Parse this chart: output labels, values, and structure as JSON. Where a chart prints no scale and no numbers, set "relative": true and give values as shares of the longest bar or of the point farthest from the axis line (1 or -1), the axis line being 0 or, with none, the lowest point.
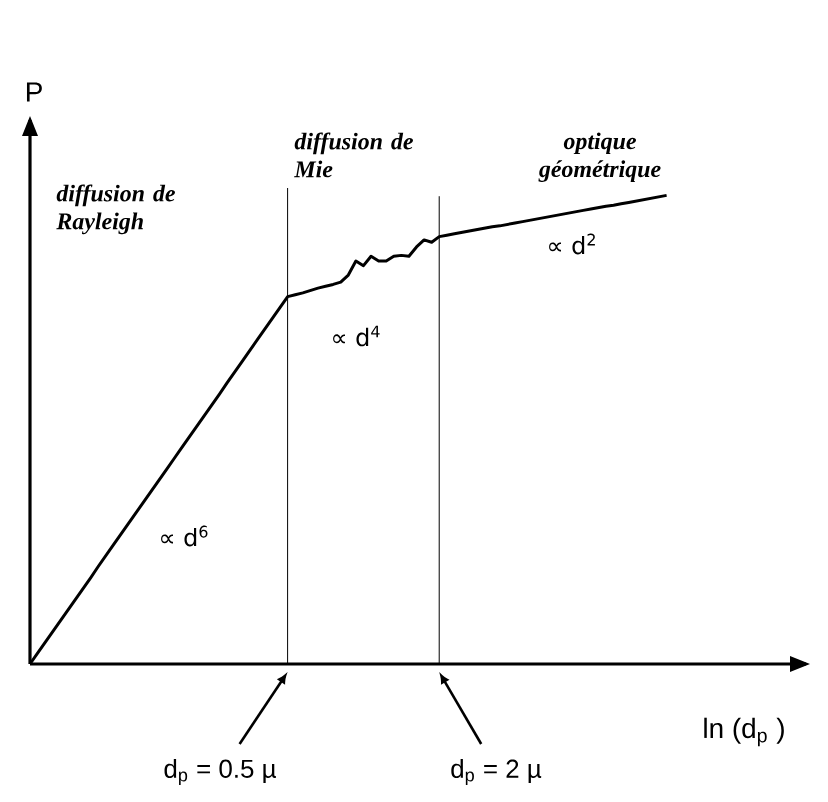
{
  "chart_data": {
    "type": "line",
    "relative": true,
    "xlabel": "ln (d$_{p}$ )",
    "ylabel": "P",
    "categories": [
      null,
      null,
      null,
      null,
      null,
      null,
      null,
      null,
      null,
      null,
      null,
      null,
      null,
      null,
      null,
      null,
      null,
      null,
      null,
      null,
      null,
      null,
      null,
      null,
      null,
      null,
      null,
      null,
      null,
      null,
      null,
      null,
      null,
      null,
      null,
      null,
      null,
      null,
      null,
      null,
      null,
      null,
      null,
      null,
      null,
      null,
      null,
      null,
      null,
      null,
      null,
      null,
      null,
      null,
      null,
      null,
      null,
      null,
      null,
      null,
      null,
      null,
      null,
      null,
      null,
      null,
      null,
      null,
      null,
      null,
      null,
      null,
      null,
      null,
      null,
      null,
      null,
      null,
      null,
      null,
      null,
      null,
      null,
      null,
      null
    ],
    "values": [
      0,
      0.023,
      0.046,
      0.069,
      0.092,
      0.115,
      0.138,
      0.161,
      0.184,
      0.208,
      0.231,
      0.254,
      0.277,
      0.3,
      0.323,
      0.346,
      0.369,
      0.392,
      0.415,
      0.438,
      0.461,
      0.484,
      0.507,
      0.53,
      0.553,
      0.576,
      0.6,
      0.623,
      0.646,
      0.669,
      0.692,
      0.715,
      0.738,
      0.761,
      0.784,
      0.788,
      0.792,
      0.797,
      0.802,
      0.806,
      0.81,
      0.815,
      0.83,
      0.86,
      0.85,
      0.87,
      0.86,
      0.86,
      0.87,
      0.872,
      0.87,
      0.89,
      0.905,
      0.9,
      0.912,
      0.915,
      0.918,
      0.921,
      0.924,
      0.927,
      0.93,
      0.933,
      0.935,
      0.938,
      0.941,
      0.944,
      0.947,
      0.95,
      0.953,
      0.956,
      0.959,
      0.962,
      0.965,
      0.968,
      0.971,
      0.974,
      0.977,
      0.979,
      0.982,
      0.985,
      0.988,
      0.991,
      0.994,
      0.997,
      1.0
    ],
    "color": "#000000",
    "marker": "none",
    "line_style": "solid",
    "annotations": [
      "diffusion de Rayleigh",
      "diffusion de Mie",
      "optique géométrique",
      "∝ d$^{6}$",
      "∝ d$^{4}$",
      "∝ d$^{2}$",
      "d$_{p}$ = 0.5 µ",
      "d$_{p}$ = 2 µ"
    ]
  }
}
